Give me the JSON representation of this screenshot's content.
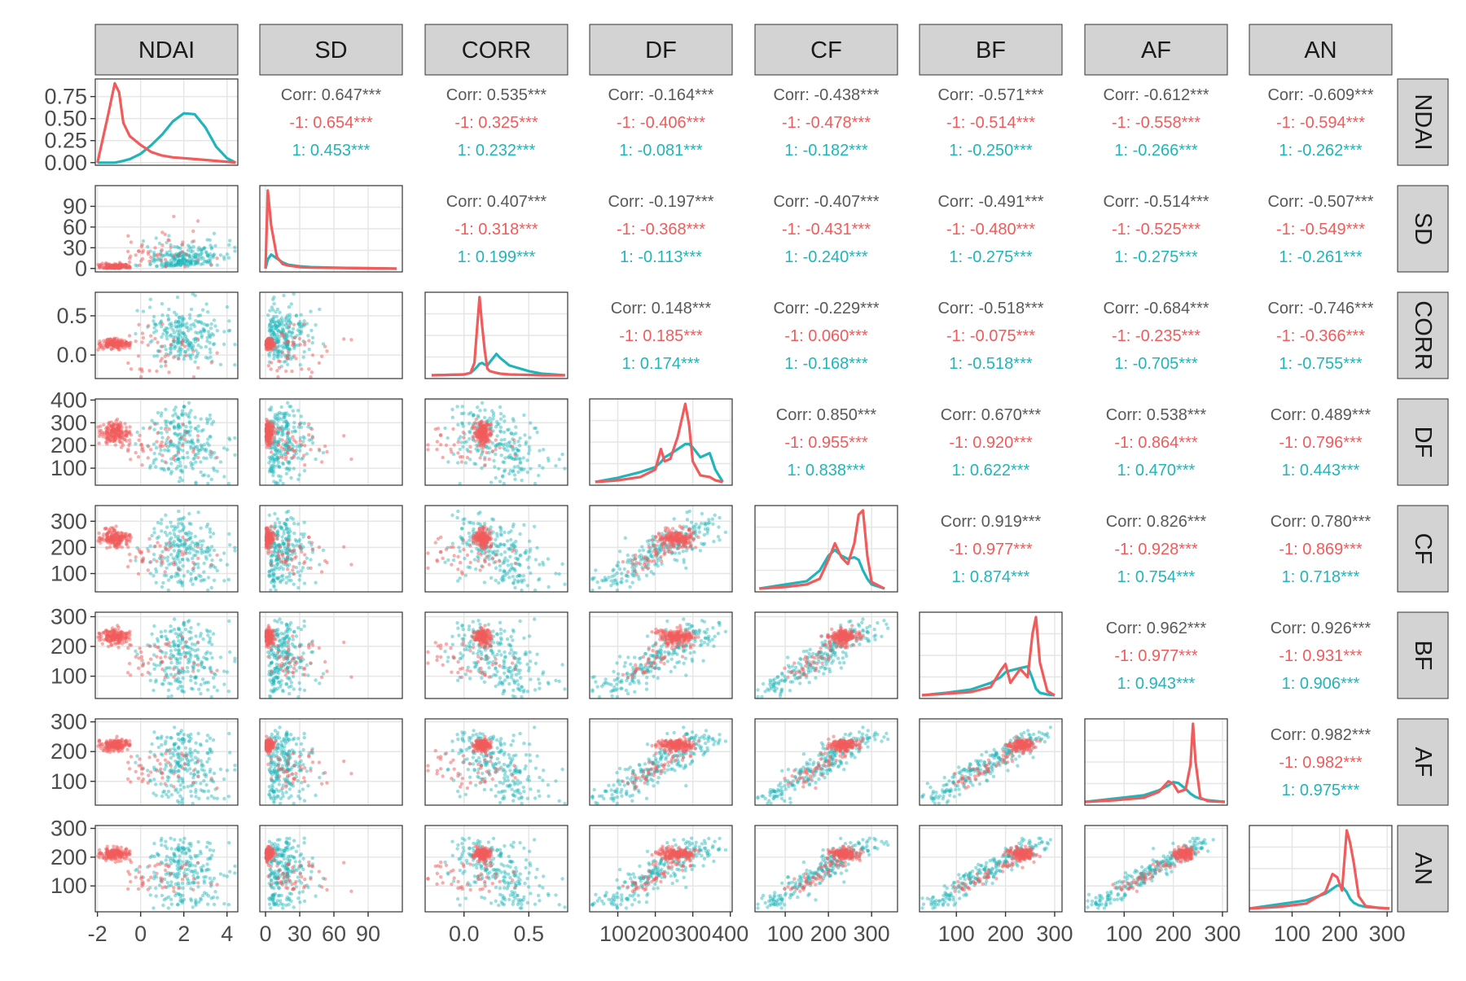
{
  "chart_data": {
    "type": "scatter",
    "title": "",
    "variables": [
      "NDAI",
      "SD",
      "CORR",
      "DF",
      "CF",
      "BF",
      "AF",
      "AN"
    ],
    "groups": [
      "-1",
      "1"
    ],
    "group_colors": {
      "-1": "#f15b5b",
      "1": "#1fb5bb"
    },
    "text_color": "#595959",
    "strip_fill": "#d3d3d3",
    "grid_color": "#e6e6e6",
    "corr_label": "Corr",
    "significance": "***",
    "axes": [
      {
        "name": "NDAI",
        "range": [
          -2.1,
          4.5
        ],
        "ticks": [
          -2,
          0,
          2,
          4
        ],
        "tick_labels": [
          "-2",
          "0",
          "2",
          "4"
        ]
      },
      {
        "name": "SD",
        "range": [
          -5,
          120
        ],
        "ticks": [
          0,
          30,
          60,
          90
        ],
        "tick_labels": [
          "0",
          "30",
          "60",
          "90"
        ]
      },
      {
        "name": "CORR",
        "range": [
          -0.3,
          0.8
        ],
        "ticks": [
          0.0,
          0.5
        ],
        "tick_labels": [
          "0.0",
          "0.5"
        ]
      },
      {
        "name": "DF",
        "range": [
          25,
          405
        ],
        "ticks": [
          100,
          200,
          300,
          400
        ],
        "tick_labels": [
          "100",
          "200",
          "300",
          "400"
        ]
      },
      {
        "name": "CF",
        "range": [
          30,
          360
        ],
        "ticks": [
          100,
          200,
          300
        ],
        "tick_labels": [
          "100",
          "200",
          "300"
        ]
      },
      {
        "name": "BF",
        "range": [
          25,
          315
        ],
        "ticks": [
          100,
          200,
          300
        ],
        "tick_labels": [
          "100",
          "200",
          "300"
        ]
      },
      {
        "name": "AF",
        "range": [
          20,
          310
        ],
        "ticks": [
          100,
          200,
          300
        ],
        "tick_labels": [
          "100",
          "200",
          "300"
        ]
      },
      {
        "name": "AN",
        "range": [
          10,
          310
        ],
        "ticks": [
          100,
          200,
          300
        ],
        "tick_labels": [
          "100",
          "200",
          "300"
        ]
      }
    ],
    "ndai_density_axis": {
      "range": [
        -0.03,
        0.95
      ],
      "ticks": [
        0,
        0.25,
        0.5,
        0.75
      ],
      "tick_labels": [
        "0.00",
        "0.25",
        "0.50",
        "0.75"
      ]
    },
    "correlations": [
      {
        "row": "SD",
        "col": "NDAI",
        "overall": "0.647",
        "neg": "0.654",
        "pos": "0.453"
      },
      {
        "row": "CORR",
        "col": "NDAI",
        "overall": "0.535",
        "neg": "0.325",
        "pos": "0.232"
      },
      {
        "row": "DF",
        "col": "NDAI",
        "overall": "-0.164",
        "neg": "-0.406",
        "pos": "-0.081"
      },
      {
        "row": "CF",
        "col": "NDAI",
        "overall": "-0.438",
        "neg": "-0.478",
        "pos": "-0.182"
      },
      {
        "row": "BF",
        "col": "NDAI",
        "overall": "-0.571",
        "neg": "-0.514",
        "pos": "-0.250"
      },
      {
        "row": "AF",
        "col": "NDAI",
        "overall": "-0.612",
        "neg": "-0.558",
        "pos": "-0.266"
      },
      {
        "row": "AN",
        "col": "NDAI",
        "overall": "-0.609",
        "neg": "-0.594",
        "pos": "-0.262"
      },
      {
        "row": "CORR",
        "col": "SD",
        "overall": "0.407",
        "neg": "0.318",
        "pos": "0.199"
      },
      {
        "row": "DF",
        "col": "SD",
        "overall": "-0.197",
        "neg": "-0.368",
        "pos": "-0.113"
      },
      {
        "row": "CF",
        "col": "SD",
        "overall": "-0.407",
        "neg": "-0.431",
        "pos": "-0.240"
      },
      {
        "row": "BF",
        "col": "SD",
        "overall": "-0.491",
        "neg": "-0.480",
        "pos": "-0.275"
      },
      {
        "row": "AF",
        "col": "SD",
        "overall": "-0.514",
        "neg": "-0.525",
        "pos": "-0.275"
      },
      {
        "row": "AN",
        "col": "SD",
        "overall": "-0.507",
        "neg": "-0.549",
        "pos": "-0.261"
      },
      {
        "row": "DF",
        "col": "CORR",
        "overall": "0.148",
        "neg": "0.185",
        "pos": "0.174"
      },
      {
        "row": "CF",
        "col": "CORR",
        "overall": "-0.229",
        "neg": "0.060",
        "pos": "-0.168"
      },
      {
        "row": "BF",
        "col": "CORR",
        "overall": "-0.518",
        "neg": "-0.075",
        "pos": "-0.518"
      },
      {
        "row": "AF",
        "col": "CORR",
        "overall": "-0.684",
        "neg": "-0.235",
        "pos": "-0.705"
      },
      {
        "row": "AN",
        "col": "CORR",
        "overall": "-0.746",
        "neg": "-0.366",
        "pos": "-0.755"
      },
      {
        "row": "CF",
        "col": "DF",
        "overall": "0.850",
        "neg": "0.955",
        "pos": "0.838"
      },
      {
        "row": "BF",
        "col": "DF",
        "overall": "0.670",
        "neg": "0.920",
        "pos": "0.622"
      },
      {
        "row": "AF",
        "col": "DF",
        "overall": "0.538",
        "neg": "0.864",
        "pos": "0.470"
      },
      {
        "row": "AN",
        "col": "DF",
        "overall": "0.489",
        "neg": "0.796",
        "pos": "0.443"
      },
      {
        "row": "BF",
        "col": "CF",
        "overall": "0.919",
        "neg": "0.977",
        "pos": "0.874"
      },
      {
        "row": "AF",
        "col": "CF",
        "overall": "0.826",
        "neg": "0.928",
        "pos": "0.754"
      },
      {
        "row": "AN",
        "col": "CF",
        "overall": "0.780",
        "neg": "0.869",
        "pos": "0.718"
      },
      {
        "row": "AF",
        "col": "BF",
        "overall": "0.962",
        "neg": "0.977",
        "pos": "0.943"
      },
      {
        "row": "AN",
        "col": "BF",
        "overall": "0.926",
        "neg": "0.931",
        "pos": "0.906"
      },
      {
        "row": "AN",
        "col": "AF",
        "overall": "0.982",
        "neg": "0.982",
        "pos": "0.975"
      }
    ],
    "densities": [
      {
        "var": "NDAI",
        "x": [
          -2.0,
          -1.5,
          -1.2,
          -1.0,
          -0.8,
          -0.5,
          0,
          0.5,
          1.0,
          1.5,
          2.0,
          2.5,
          3.0,
          3.5,
          4.0,
          4.4
        ],
        "neg": [
          0.0,
          0.55,
          0.9,
          0.8,
          0.45,
          0.3,
          0.2,
          0.12,
          0.08,
          0.06,
          0.05,
          0.04,
          0.03,
          0.02,
          0.01,
          0.0
        ],
        "pos": [
          0.0,
          0.0,
          0.0,
          0.01,
          0.02,
          0.04,
          0.1,
          0.2,
          0.32,
          0.47,
          0.56,
          0.55,
          0.4,
          0.18,
          0.05,
          0.0
        ]
      },
      {
        "var": "SD",
        "x": [
          0,
          2,
          5,
          10,
          15,
          20,
          30,
          40,
          60,
          90,
          115
        ],
        "neg": [
          0.0,
          1.0,
          0.55,
          0.15,
          0.06,
          0.04,
          0.02,
          0.015,
          0.01,
          0.005,
          0.0
        ],
        "pos": [
          0.0,
          0.12,
          0.18,
          0.13,
          0.08,
          0.05,
          0.03,
          0.02,
          0.012,
          0.005,
          0.0
        ]
      },
      {
        "var": "CORR",
        "x": [
          -0.25,
          0.0,
          0.05,
          0.08,
          0.1,
          0.12,
          0.14,
          0.16,
          0.18,
          0.2,
          0.25,
          0.28,
          0.35,
          0.5,
          0.6,
          0.78
        ],
        "neg": [
          0.0,
          0.01,
          0.03,
          0.15,
          0.55,
          0.95,
          0.6,
          0.3,
          0.08,
          0.05,
          0.03,
          0.02,
          0.01,
          0.005,
          0.0,
          0.0
        ],
        "pos": [
          0.0,
          0.01,
          0.03,
          0.07,
          0.1,
          0.14,
          0.15,
          0.13,
          0.12,
          0.16,
          0.26,
          0.21,
          0.12,
          0.05,
          0.02,
          0.0
        ]
      },
      {
        "var": "DF",
        "x": [
          40,
          100,
          160,
          200,
          215,
          225,
          240,
          260,
          280,
          290,
          300,
          320,
          345,
          360,
          380
        ],
        "neg": [
          0.0,
          0.02,
          0.06,
          0.15,
          0.4,
          0.25,
          0.28,
          0.55,
          0.95,
          0.7,
          0.25,
          0.08,
          0.06,
          0.02,
          0.0
        ],
        "pos": [
          0.0,
          0.05,
          0.12,
          0.18,
          0.24,
          0.3,
          0.34,
          0.4,
          0.46,
          0.46,
          0.42,
          0.3,
          0.35,
          0.15,
          0.0
        ]
      },
      {
        "var": "CF",
        "x": [
          40,
          100,
          150,
          180,
          200,
          215,
          230,
          245,
          260,
          270,
          280,
          290,
          300,
          330
        ],
        "neg": [
          0.0,
          0.02,
          0.05,
          0.12,
          0.35,
          0.55,
          0.38,
          0.3,
          0.55,
          0.9,
          0.95,
          0.4,
          0.08,
          0.0
        ],
        "pos": [
          0.0,
          0.05,
          0.09,
          0.22,
          0.4,
          0.47,
          0.4,
          0.36,
          0.38,
          0.35,
          0.22,
          0.12,
          0.05,
          0.0
        ]
      },
      {
        "var": "BF",
        "x": [
          30,
          80,
          130,
          170,
          190,
          200,
          210,
          230,
          245,
          255,
          262,
          270,
          285,
          300
        ],
        "neg": [
          0.0,
          0.02,
          0.04,
          0.1,
          0.3,
          0.38,
          0.15,
          0.32,
          0.22,
          0.75,
          0.95,
          0.4,
          0.05,
          0.0
        ],
        "pos": [
          0.0,
          0.03,
          0.07,
          0.15,
          0.22,
          0.28,
          0.3,
          0.33,
          0.35,
          0.2,
          0.08,
          0.03,
          0.01,
          0.0
        ]
      },
      {
        "var": "AF",
        "x": [
          20,
          80,
          140,
          170,
          190,
          200,
          210,
          225,
          235,
          240,
          245,
          255,
          270,
          305
        ],
        "neg": [
          0.0,
          0.02,
          0.05,
          0.12,
          0.25,
          0.22,
          0.12,
          0.15,
          0.45,
          0.95,
          0.5,
          0.05,
          0.01,
          0.0
        ],
        "pos": [
          0.0,
          0.04,
          0.08,
          0.14,
          0.2,
          0.24,
          0.23,
          0.16,
          0.1,
          0.08,
          0.06,
          0.04,
          0.02,
          0.0
        ]
      },
      {
        "var": "AN",
        "x": [
          10,
          70,
          130,
          170,
          185,
          195,
          205,
          215,
          222,
          230,
          240,
          255,
          280,
          305
        ],
        "neg": [
          0.0,
          0.02,
          0.06,
          0.2,
          0.42,
          0.38,
          0.22,
          0.95,
          0.8,
          0.55,
          0.15,
          0.03,
          0.01,
          0.0
        ],
        "pos": [
          0.0,
          0.05,
          0.1,
          0.18,
          0.24,
          0.28,
          0.27,
          0.2,
          0.12,
          0.07,
          0.04,
          0.02,
          0.01,
          0.0
        ]
      }
    ]
  }
}
